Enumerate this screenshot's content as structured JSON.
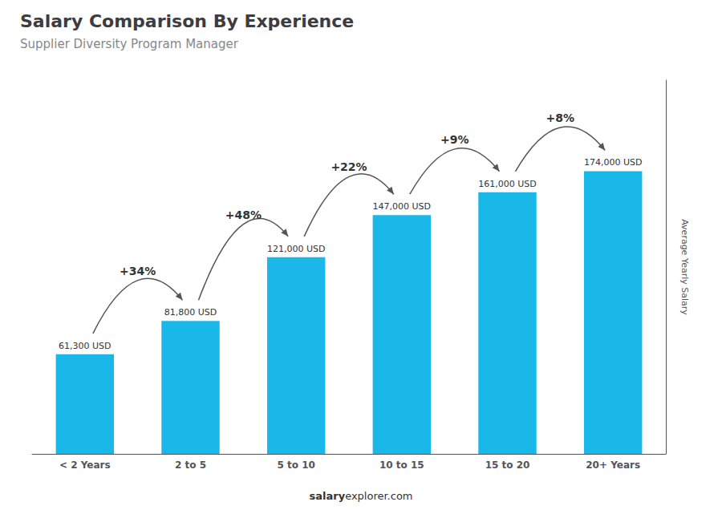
{
  "chart_data": {
    "type": "bar",
    "title": "Salary Comparison By Experience",
    "subtitle": "Supplier Diversity Program Manager",
    "categories": [
      "< 2 Years",
      "2 to 5",
      "5 to 10",
      "10 to 15",
      "15 to 20",
      "20+ Years"
    ],
    "values": [
      61300,
      81800,
      121000,
      147000,
      161000,
      174000
    ],
    "value_labels": [
      "61,300 USD",
      "81,800 USD",
      "121,000 USD",
      "147,000 USD",
      "161,000 USD",
      "174,000 USD"
    ],
    "data_labels": true,
    "annotations": [
      "+34%",
      "+48%",
      "+22%",
      "+9%",
      "+8%"
    ],
    "ylabel": "Average Yearly Salary",
    "footer": [
      "salary",
      "explorer.com"
    ],
    "color": "#1ab8e8",
    "ylim": [
      0,
      230000
    ],
    "tick_labels": "x",
    "grid": false
  }
}
